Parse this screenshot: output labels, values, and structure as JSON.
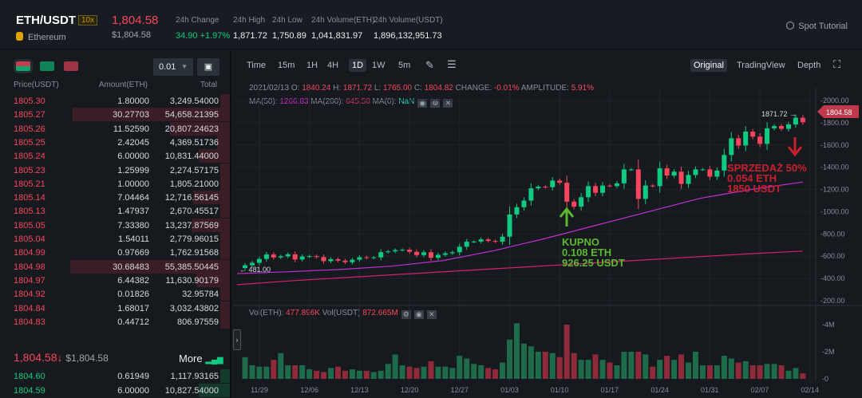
{
  "header": {
    "pair": "ETH/USDT",
    "leverage": "10x",
    "coin_name": "Ethereum",
    "last_price": "1,804.58",
    "last_price_usd": "$1,804.58",
    "stats": [
      {
        "label": "24h Change",
        "value": "34.90 +1.97%",
        "color": "#0ecb81"
      },
      {
        "label": "24h High",
        "value": "1,871.72"
      },
      {
        "label": "24h Low",
        "value": "1,750.89"
      },
      {
        "label": "24h Volume(ETH)",
        "value": "1,041,831.97"
      },
      {
        "label": "24h Volume(USDT)",
        "value": "1,896,132,951.73"
      }
    ],
    "spot_tutorial": "Spot Tutorial"
  },
  "orderbook": {
    "precision": "0.01",
    "headers": {
      "price": "Price(USDT)",
      "amount": "Amount(ETH)",
      "total": "Total"
    },
    "asks": [
      [
        "1805.30",
        "1.80000",
        "3,249.54000"
      ],
      [
        "1805.27",
        "30.27703",
        "54,658.21395"
      ],
      [
        "1805.26",
        "11.52590",
        "20,807.24623"
      ],
      [
        "1805.25",
        "2.42045",
        "4,369.51736"
      ],
      [
        "1805.24",
        "6.00000",
        "10,831.44000"
      ],
      [
        "1805.23",
        "1.25999",
        "2,274.57175"
      ],
      [
        "1805.21",
        "1.00000",
        "1,805.21000"
      ],
      [
        "1805.14",
        "7.04464",
        "12,716.56145"
      ],
      [
        "1805.13",
        "1.47937",
        "2,670.45517"
      ],
      [
        "1805.05",
        "7.33380",
        "13,237.87569"
      ],
      [
        "1805.04",
        "1.54011",
        "2,779.96015"
      ],
      [
        "1804.99",
        "0.97669",
        "1,762.91568"
      ],
      [
        "1804.98",
        "30.68483",
        "55,385.50445"
      ],
      [
        "1804.97",
        "6.44382",
        "11,630.90179"
      ],
      [
        "1804.92",
        "0.01826",
        "32.95784"
      ],
      [
        "1804.84",
        "1.68017",
        "3,032.43802"
      ],
      [
        "1804.83",
        "0.44712",
        "806.97559"
      ]
    ],
    "mid_price": "1,804.58",
    "mid_arrow": "↓",
    "mid_usd": "$1,804.58",
    "more": "More",
    "bids": [
      [
        "1804.60",
        "0.61949",
        "1,117.93165"
      ],
      [
        "1804.59",
        "6.00000",
        "10,827.54000"
      ]
    ]
  },
  "chart": {
    "intervals": [
      "Time",
      "15m",
      "1H",
      "4H",
      "1D",
      "1W",
      "5m"
    ],
    "selected_interval": "1D",
    "views": [
      "Original",
      "TradingView",
      "Depth"
    ],
    "selected_view": "Original",
    "ohlc": {
      "date": "2021/02/13",
      "o_label": "O:",
      "o": "1840.24",
      "h_label": "H:",
      "h": "1871.72",
      "l_label": "L:",
      "l": "1765.00",
      "c_label": "C:",
      "c": "1804.82",
      "change_label": "CHANGE:",
      "change": "-0.01%",
      "amp_label": "AMPLITUDE:",
      "amp": "5.91%"
    },
    "ma": {
      "ma50_label": "MA(50):",
      "ma50": "1266.83",
      "ma200_label": "MA(200):",
      "ma200": "645.50",
      "ma0_label": "MA(0):",
      "ma0": "NaN"
    },
    "vol": {
      "eth_label": "Vol(ETH):",
      "eth": "477.896K",
      "usdt_label": "Vol(USDT)",
      "usdt": "872.665M"
    },
    "price_ticks": [
      "2000.00",
      "1800.00",
      "1600.00",
      "1400.00",
      "1200.00",
      "1000.00",
      "800.00",
      "600.00",
      "400.00",
      "200.00"
    ],
    "vol_ticks": [
      "4M",
      "2M",
      "0"
    ],
    "date_ticks": [
      "11/29",
      "12/06",
      "12/13",
      "12/20",
      "12/27",
      "01/03",
      "01/10",
      "01/17",
      "01/24",
      "01/31",
      "02/07",
      "02/14"
    ],
    "current_price_tag": "1804.58",
    "high_marker": "1871.72",
    "low_marker": "481.00",
    "colors": {
      "up": "#0ecb81",
      "down": "#f6465d",
      "ma50": "#c12fd0",
      "ma200": "#d4216a"
    },
    "annotations": {
      "buy": [
        "KUPNO",
        "0.108 ETH",
        "926.25 USDT"
      ],
      "sell": [
        "SPRZEDAŻ 50%",
        "0.054 ETH",
        "1850 USDT"
      ]
    }
  },
  "chart_data": {
    "type": "candlestick",
    "start_date": "11/27",
    "closes": [
      518,
      540,
      575,
      615,
      588,
      598,
      617,
      570,
      597,
      600,
      592,
      555,
      573,
      560,
      545,
      568,
      590,
      586,
      589,
      636,
      643,
      655,
      658,
      639,
      610,
      635,
      585,
      612,
      626,
      635,
      685,
      730,
      731,
      751,
      737,
      730,
      775,
      975,
      1040,
      1100,
      1210,
      1225,
      1220,
      1280,
      1260,
      1090,
      1045,
      1130,
      1230,
      1170,
      1235,
      1230,
      1255,
      1380,
      1380,
      1115,
      1235,
      1230,
      1390,
      1325,
      1360,
      1250,
      1330,
      1380,
      1380,
      1315,
      1370,
      1510,
      1660,
      1595,
      1720,
      1675,
      1610,
      1750,
      1770,
      1745,
      1785,
      1845,
      1805
    ],
    "volumes_m": [
      1.6,
      1.0,
      0.9,
      0.9,
      1.4,
      1.9,
      1.0,
      1.0,
      1.0,
      0.7,
      0.6,
      0.5,
      0.8,
      0.9,
      0.6,
      0.7,
      0.6,
      0.6,
      0.5,
      0.6,
      1.1,
      1.8,
      1.0,
      0.9,
      0.8,
      0.9,
      1.3,
      0.9,
      0.9,
      0.8,
      1.7,
      1.5,
      1.1,
      1.0,
      0.8,
      0.7,
      1.2,
      2.9,
      4.1,
      2.6,
      2.4,
      2.0,
      2.0,
      1.9,
      1.6,
      4.0,
      1.9,
      1.4,
      1.4,
      1.8,
      1.4,
      1.2,
      1.0,
      2.0,
      2.0,
      2.0,
      1.8,
      0.9,
      1.4,
      1.7,
      1.4,
      1.8,
      1.2,
      2.0,
      1.0,
      1.0,
      1.0,
      1.7,
      1.5,
      1.2,
      1.3,
      1.0,
      1.0,
      1.1,
      1.1,
      1.0,
      0.6,
      0.8,
      0.4
    ],
    "ma50": [
      443,
      460,
      480,
      510,
      560,
      650,
      760,
      880,
      1000,
      1120,
      1200,
      1266.83
    ],
    "ma200": [
      343,
      380,
      410,
      440,
      470,
      500,
      530,
      560,
      590,
      620,
      645.5
    ],
    "ylim": [
      200,
      2000
    ]
  }
}
